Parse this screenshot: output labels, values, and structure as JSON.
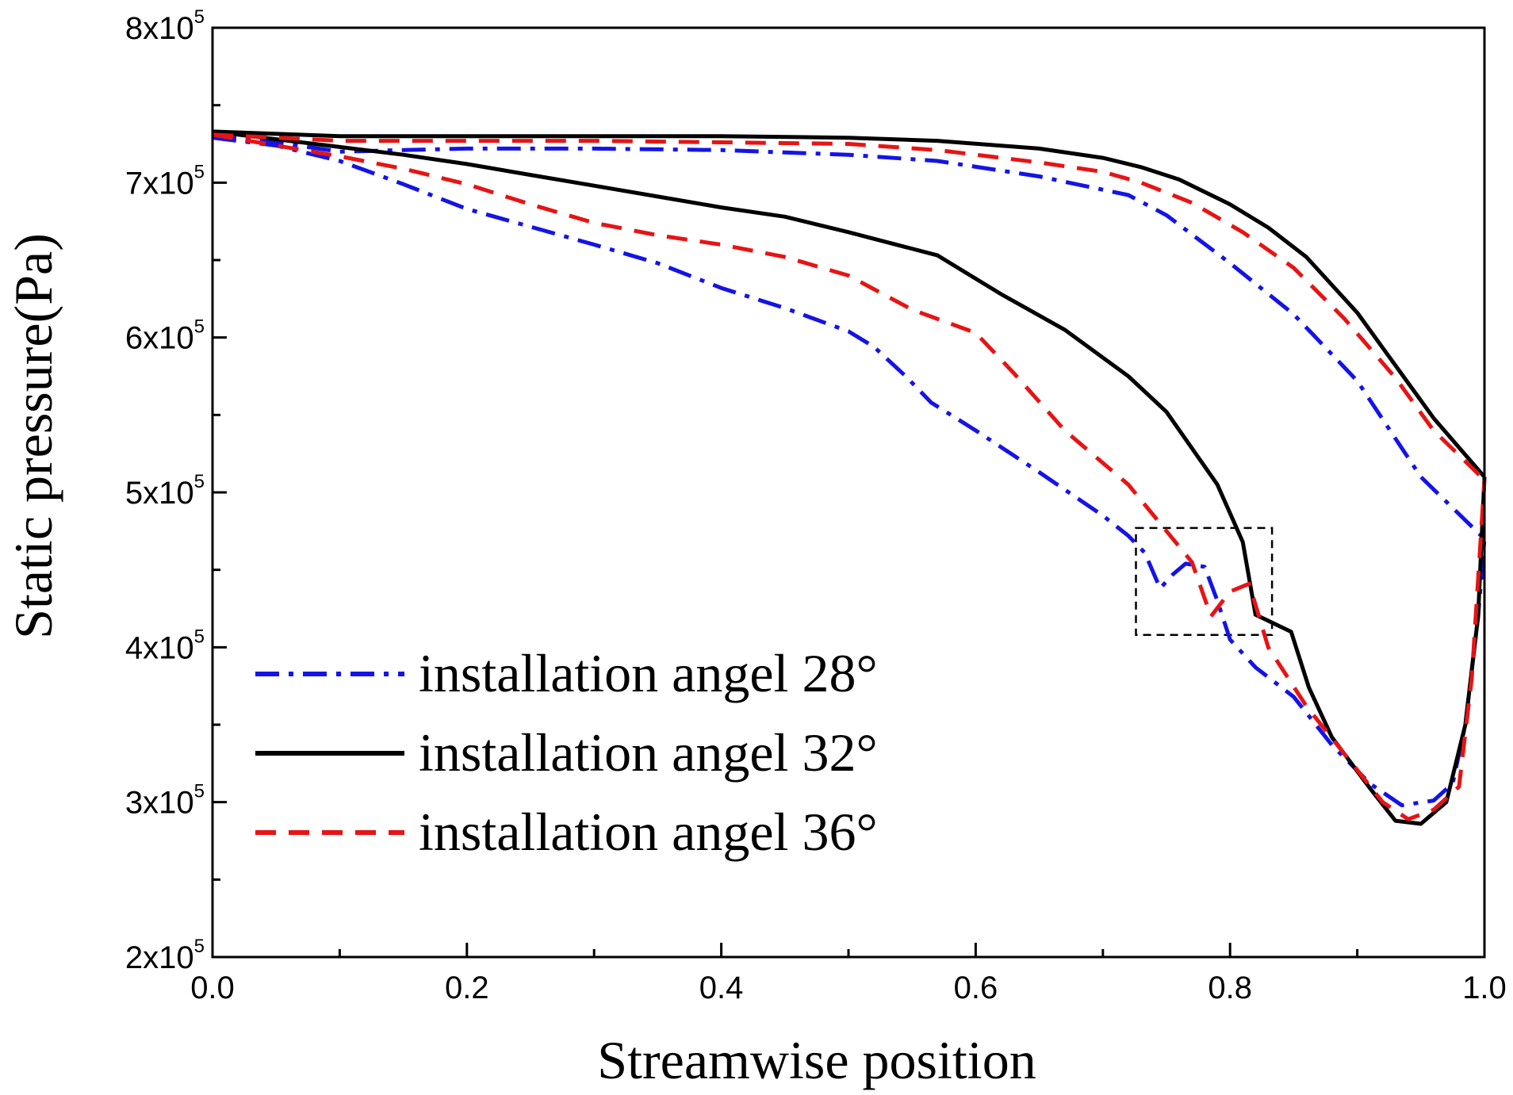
{
  "chart_data": {
    "type": "line",
    "xlabel": "Streamwise position",
    "ylabel": "Static pressure(Pa)",
    "xlim": [
      0.0,
      1.0
    ],
    "ylim": [
      200000,
      800000
    ],
    "x_ticks": [
      {
        "value": 0.0,
        "label": "0.0"
      },
      {
        "value": 0.2,
        "label": "0.2"
      },
      {
        "value": 0.4,
        "label": "0.4"
      },
      {
        "value": 0.6,
        "label": "0.6"
      },
      {
        "value": 0.8,
        "label": "0.8"
      },
      {
        "value": 1.0,
        "label": "1.0"
      }
    ],
    "y_ticks": [
      {
        "value": 200000,
        "mantissa": "2x10",
        "exp": "5"
      },
      {
        "value": 300000,
        "mantissa": "3x10",
        "exp": "5"
      },
      {
        "value": 400000,
        "mantissa": "4x10",
        "exp": "5"
      },
      {
        "value": 500000,
        "mantissa": "5x10",
        "exp": "5"
      },
      {
        "value": 600000,
        "mantissa": "6x10",
        "exp": "5"
      },
      {
        "value": 700000,
        "mantissa": "7x10",
        "exp": "5"
      },
      {
        "value": 800000,
        "mantissa": "8x10",
        "exp": "5"
      }
    ],
    "legend_placement": "lower-left",
    "highlight_box": {
      "x": [
        0.726,
        0.833
      ],
      "y": [
        408000,
        477000
      ]
    },
    "series": [
      {
        "name": "installation angel 28°",
        "color": "#1414e6",
        "dash": "dashdot",
        "upper": [
          [
            0.0,
            730000
          ],
          [
            0.05,
            726000
          ],
          [
            0.1,
            720000
          ],
          [
            0.15,
            721000
          ],
          [
            0.2,
            722000
          ],
          [
            0.3,
            722000
          ],
          [
            0.4,
            721000
          ],
          [
            0.5,
            718000
          ],
          [
            0.57,
            714000
          ],
          [
            0.65,
            704000
          ],
          [
            0.72,
            692000
          ],
          [
            0.75,
            679000
          ],
          [
            0.8,
            648000
          ],
          [
            0.85,
            615000
          ],
          [
            0.9,
            572000
          ],
          [
            0.95,
            510000
          ],
          [
            1.0,
            470000
          ]
        ],
        "lower": [
          [
            0.0,
            729000
          ],
          [
            0.05,
            724000
          ],
          [
            0.1,
            714000
          ],
          [
            0.15,
            699000
          ],
          [
            0.2,
            683000
          ],
          [
            0.3,
            660000
          ],
          [
            0.35,
            648000
          ],
          [
            0.4,
            632000
          ],
          [
            0.45,
            619000
          ],
          [
            0.5,
            604000
          ],
          [
            0.52,
            594000
          ],
          [
            0.545,
            575000
          ],
          [
            0.565,
            558000
          ],
          [
            0.6,
            540000
          ],
          [
            0.65,
            513000
          ],
          [
            0.7,
            485000
          ],
          [
            0.72,
            472000
          ],
          [
            0.733,
            461000
          ],
          [
            0.745,
            438000
          ],
          [
            0.755,
            447000
          ],
          [
            0.765,
            454000
          ],
          [
            0.78,
            452000
          ],
          [
            0.79,
            430000
          ],
          [
            0.8,
            405000
          ],
          [
            0.82,
            387000
          ],
          [
            0.85,
            368000
          ],
          [
            0.88,
            337000
          ],
          [
            0.91,
            312000
          ],
          [
            0.935,
            298000
          ],
          [
            0.96,
            301000
          ],
          [
            0.975,
            312000
          ],
          [
            0.985,
            350000
          ],
          [
            0.995,
            420000
          ],
          [
            1.0,
            470000
          ]
        ]
      },
      {
        "name": "installation angel 32°",
        "color": "#000000",
        "dash": "solid",
        "upper": [
          [
            0.0,
            733000
          ],
          [
            0.1,
            730000
          ],
          [
            0.2,
            730000
          ],
          [
            0.3,
            730000
          ],
          [
            0.4,
            730000
          ],
          [
            0.5,
            729000
          ],
          [
            0.57,
            727000
          ],
          [
            0.65,
            722000
          ],
          [
            0.7,
            716000
          ],
          [
            0.73,
            710000
          ],
          [
            0.76,
            702000
          ],
          [
            0.8,
            686000
          ],
          [
            0.83,
            671000
          ],
          [
            0.86,
            652000
          ],
          [
            0.9,
            616000
          ],
          [
            0.93,
            582000
          ],
          [
            0.96,
            548000
          ],
          [
            1.0,
            510000
          ]
        ],
        "lower": [
          [
            0.0,
            733000
          ],
          [
            0.05,
            728000
          ],
          [
            0.1,
            723000
          ],
          [
            0.15,
            718000
          ],
          [
            0.2,
            712000
          ],
          [
            0.25,
            705000
          ],
          [
            0.3,
            698000
          ],
          [
            0.35,
            691000
          ],
          [
            0.4,
            684000
          ],
          [
            0.45,
            678000
          ],
          [
            0.5,
            668000
          ],
          [
            0.57,
            653000
          ],
          [
            0.62,
            628000
          ],
          [
            0.67,
            605000
          ],
          [
            0.72,
            575000
          ],
          [
            0.75,
            552000
          ],
          [
            0.79,
            505000
          ],
          [
            0.81,
            468000
          ],
          [
            0.82,
            421000
          ],
          [
            0.848,
            410000
          ],
          [
            0.862,
            374000
          ],
          [
            0.88,
            342000
          ],
          [
            0.91,
            309000
          ],
          [
            0.93,
            288000
          ],
          [
            0.95,
            286000
          ],
          [
            0.97,
            300000
          ],
          [
            0.985,
            350000
          ],
          [
            0.995,
            420000
          ],
          [
            1.0,
            510000
          ]
        ]
      },
      {
        "name": "installation angel 36°",
        "color": "#e61414",
        "dash": "dashed",
        "upper": [
          [
            0.0,
            731000
          ],
          [
            0.1,
            727000
          ],
          [
            0.2,
            727000
          ],
          [
            0.3,
            727000
          ],
          [
            0.4,
            726000
          ],
          [
            0.5,
            725000
          ],
          [
            0.57,
            721000
          ],
          [
            0.65,
            713000
          ],
          [
            0.7,
            707000
          ],
          [
            0.73,
            700000
          ],
          [
            0.77,
            687000
          ],
          [
            0.81,
            668000
          ],
          [
            0.85,
            645000
          ],
          [
            0.89,
            612000
          ],
          [
            0.93,
            574000
          ],
          [
            0.96,
            540000
          ],
          [
            0.99,
            516000
          ],
          [
            1.0,
            508000
          ]
        ],
        "lower": [
          [
            0.0,
            731000
          ],
          [
            0.05,
            724000
          ],
          [
            0.1,
            717000
          ],
          [
            0.15,
            709000
          ],
          [
            0.2,
            699000
          ],
          [
            0.25,
            686000
          ],
          [
            0.3,
            674000
          ],
          [
            0.35,
            666000
          ],
          [
            0.4,
            660000
          ],
          [
            0.45,
            652000
          ],
          [
            0.5,
            640000
          ],
          [
            0.55,
            618000
          ],
          [
            0.6,
            603000
          ],
          [
            0.63,
            577000
          ],
          [
            0.67,
            540000
          ],
          [
            0.72,
            505000
          ],
          [
            0.75,
            475000
          ],
          [
            0.77,
            455000
          ],
          [
            0.785,
            420000
          ],
          [
            0.8,
            436000
          ],
          [
            0.815,
            441000
          ],
          [
            0.83,
            400000
          ],
          [
            0.86,
            362000
          ],
          [
            0.89,
            331000
          ],
          [
            0.92,
            300000
          ],
          [
            0.94,
            289000
          ],
          [
            0.96,
            295000
          ],
          [
            0.98,
            310000
          ],
          [
            0.99,
            380000
          ],
          [
            1.0,
            508000
          ]
        ]
      }
    ]
  }
}
